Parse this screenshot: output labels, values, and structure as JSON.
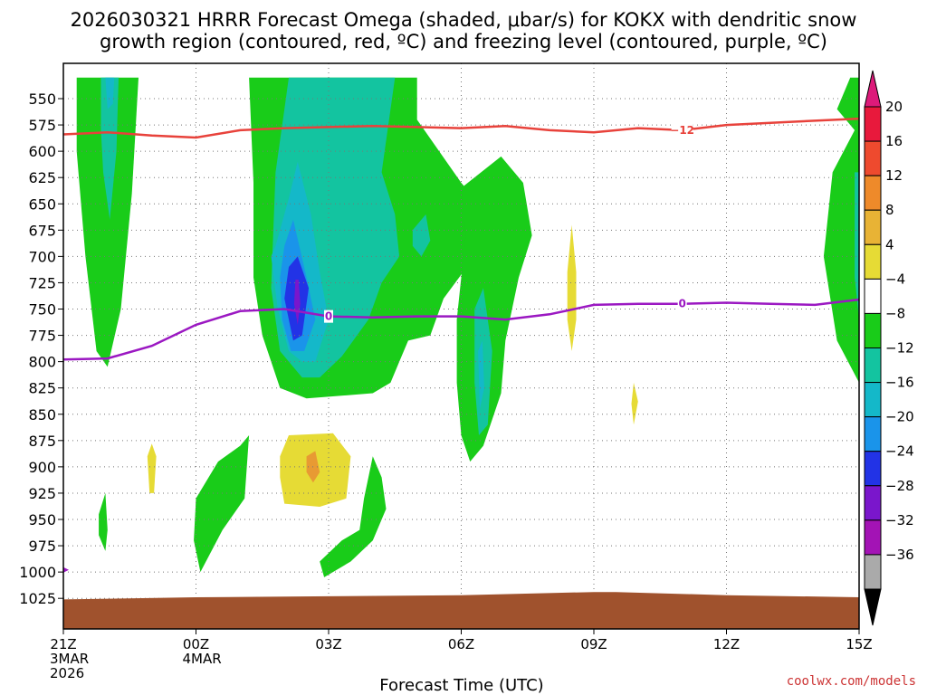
{
  "colors": {
    "green": "#19cc19",
    "teal": "#13c4a0",
    "cyan": "#14b8c9",
    "lightblue": "#1a94ea",
    "blue": "#2233e6",
    "purple": "#7a16cc",
    "yellow": "#e6db35",
    "orange": "#e89a33",
    "red_line": "#e8423b",
    "purple_line": "#9b18c2",
    "ground": "#a0522d",
    "credit": "#cc3333"
  },
  "chart_data": {
    "type": "time-height cross section",
    "title_line1": "2026030321 HRRR Forecast Omega (shaded, μbar/s) for KOKX with dendritic snow",
    "title_line2": "growth region (contoured, red, ºC) and freezing level (contoured, purple, ºC)",
    "xlabel": "Forecast Time (UTC)",
    "credit": "coolwx.com/models",
    "y_ticks": [
      550,
      575,
      600,
      625,
      650,
      675,
      700,
      725,
      750,
      775,
      800,
      825,
      850,
      875,
      900,
      925,
      950,
      975,
      1000,
      1025
    ],
    "x_ticks": [
      {
        "h": 0,
        "l1": "21Z",
        "l2": "3MAR",
        "l3": "2026"
      },
      {
        "h": 3,
        "l1": "00Z",
        "l2": "4MAR",
        "l3": ""
      },
      {
        "h": 6,
        "l1": "03Z",
        "l2": "",
        "l3": ""
      },
      {
        "h": 9,
        "l1": "06Z",
        "l2": "",
        "l3": ""
      },
      {
        "h": 12,
        "l1": "09Z",
        "l2": "",
        "l3": ""
      },
      {
        "h": 15,
        "l1": "12Z",
        "l2": "",
        "l3": ""
      },
      {
        "h": 18,
        "l1": "15Z",
        "l2": "",
        "l3": ""
      }
    ],
    "x_range_hours": [
      0,
      18
    ],
    "colorbar": {
      "labels": [
        "20",
        "16",
        "12",
        "8",
        "4",
        "−4",
        "−8",
        "−12",
        "−16",
        "−20",
        "−24",
        "−28",
        "−32",
        "−36"
      ],
      "segments": [
        "#e8193c",
        "#ee4a2e",
        "#ee8a2a",
        "#e8b335",
        "#e6db35",
        "#ffffff",
        "#19cc19",
        "#13c4a0",
        "#14b8c9",
        "#1a94ea",
        "#2233e6",
        "#7a16cc",
        "#a313b5",
        "#aaaaaa"
      ],
      "top_arrow": "#dd1a7a",
      "bottom_arrow": "#000000"
    },
    "dgz_line": {
      "value_label": "−12",
      "label_h": 14.0,
      "points": [
        [
          0,
          584
        ],
        [
          1,
          582
        ],
        [
          2,
          585
        ],
        [
          3,
          587
        ],
        [
          4,
          580
        ],
        [
          5,
          578
        ],
        [
          6,
          577
        ],
        [
          7,
          576
        ],
        [
          8,
          577
        ],
        [
          9,
          578
        ],
        [
          10,
          576
        ],
        [
          11,
          580
        ],
        [
          12,
          582
        ],
        [
          13,
          578
        ],
        [
          14,
          580
        ],
        [
          15,
          575
        ],
        [
          16,
          573
        ],
        [
          17,
          571
        ],
        [
          18,
          569
        ]
      ]
    },
    "freezing_line": {
      "value_label": "0",
      "label_points": [
        [
          6.0,
          758
        ],
        [
          14.0,
          745
        ]
      ],
      "points": [
        [
          0,
          798
        ],
        [
          1,
          797
        ],
        [
          2,
          785
        ],
        [
          3,
          765
        ],
        [
          4,
          752
        ],
        [
          5,
          750
        ],
        [
          6,
          757
        ],
        [
          7,
          758
        ],
        [
          8,
          757
        ],
        [
          9,
          757
        ],
        [
          10,
          760
        ],
        [
          11,
          755
        ],
        [
          12,
          746
        ],
        [
          13,
          745
        ],
        [
          14,
          745
        ],
        [
          15,
          744
        ],
        [
          16,
          745
        ],
        [
          17,
          746
        ],
        [
          18,
          741
        ]
      ]
    },
    "omega_regions": [
      {
        "name": "column-left",
        "color": "green",
        "points": [
          [
            0.3,
            530
          ],
          [
            1.7,
            530
          ],
          [
            1.55,
            640
          ],
          [
            1.3,
            750
          ],
          [
            1.0,
            805
          ],
          [
            0.75,
            790
          ],
          [
            0.5,
            700
          ],
          [
            0.3,
            600
          ]
        ]
      },
      {
        "name": "column-left-core",
        "color": "teal",
        "points": [
          [
            0.85,
            530
          ],
          [
            1.25,
            530
          ],
          [
            1.2,
            600
          ],
          [
            1.05,
            665
          ],
          [
            0.9,
            620
          ],
          [
            0.85,
            580
          ]
        ]
      },
      {
        "name": "column-left-inner",
        "color": "cyan",
        "points": [
          [
            0.95,
            530
          ],
          [
            1.15,
            530
          ],
          [
            1.12,
            555
          ],
          [
            1.0,
            560
          ]
        ]
      },
      {
        "name": "main-plume",
        "color": "green",
        "points": [
          [
            4.2,
            530
          ],
          [
            8.0,
            530
          ],
          [
            8.0,
            570
          ],
          [
            8.5,
            600
          ],
          [
            9.0,
            630
          ],
          [
            9.6,
            660
          ],
          [
            9.3,
            700
          ],
          [
            8.6,
            740
          ],
          [
            8.3,
            775
          ],
          [
            7.8,
            780
          ],
          [
            7.6,
            800
          ],
          [
            7.4,
            820
          ],
          [
            7.0,
            830
          ],
          [
            5.5,
            835
          ],
          [
            4.9,
            825
          ],
          [
            4.5,
            775
          ],
          [
            4.3,
            720
          ],
          [
            4.3,
            630
          ]
        ]
      },
      {
        "name": "main-plume-teal",
        "color": "teal",
        "points": [
          [
            5.1,
            530
          ],
          [
            7.5,
            530
          ],
          [
            7.2,
            620
          ],
          [
            7.5,
            660
          ],
          [
            7.6,
            700
          ],
          [
            7.2,
            725
          ],
          [
            6.9,
            760
          ],
          [
            6.3,
            795
          ],
          [
            5.8,
            815
          ],
          [
            5.4,
            815
          ],
          [
            4.9,
            790
          ],
          [
            4.7,
            730
          ],
          [
            4.8,
            620
          ],
          [
            5.0,
            560
          ]
        ]
      },
      {
        "name": "main-plume-cyan",
        "color": "cyan",
        "points": [
          [
            4.8,
            690
          ],
          [
            5.1,
            645
          ],
          [
            5.3,
            610
          ],
          [
            5.6,
            660
          ],
          [
            5.8,
            715
          ],
          [
            6.0,
            760
          ],
          [
            5.7,
            800
          ],
          [
            5.4,
            800
          ],
          [
            5.1,
            790
          ],
          [
            4.85,
            750
          ],
          [
            4.7,
            700
          ]
        ]
      },
      {
        "name": "main-plume-lightblue",
        "color": "lightblue",
        "points": [
          [
            5.0,
            690
          ],
          [
            5.2,
            665
          ],
          [
            5.5,
            720
          ],
          [
            5.7,
            760
          ],
          [
            5.45,
            790
          ],
          [
            5.15,
            790
          ],
          [
            4.95,
            760
          ],
          [
            4.9,
            720
          ]
        ]
      },
      {
        "name": "main-plume-blue",
        "color": "blue",
        "points": [
          [
            5.1,
            710
          ],
          [
            5.3,
            700
          ],
          [
            5.55,
            730
          ],
          [
            5.4,
            775
          ],
          [
            5.2,
            780
          ],
          [
            5.0,
            740
          ]
        ]
      },
      {
        "name": "main-plume-purple",
        "color": "purple",
        "points": [
          [
            5.25,
            722
          ],
          [
            5.32,
            722
          ],
          [
            5.36,
            745
          ],
          [
            5.3,
            765
          ],
          [
            5.22,
            745
          ]
        ]
      },
      {
        "name": "teal-blob",
        "color": "teal",
        "points": [
          [
            7.9,
            675
          ],
          [
            8.2,
            660
          ],
          [
            8.3,
            685
          ],
          [
            8.1,
            700
          ],
          [
            7.9,
            690
          ]
        ]
      },
      {
        "name": "right-column",
        "color": "green",
        "points": [
          [
            9.0,
            635
          ],
          [
            9.9,
            605
          ],
          [
            10.4,
            630
          ],
          [
            10.6,
            680
          ],
          [
            10.3,
            720
          ],
          [
            10.0,
            780
          ],
          [
            9.9,
            830
          ],
          [
            9.5,
            880
          ],
          [
            9.2,
            895
          ],
          [
            9.0,
            870
          ],
          [
            8.9,
            820
          ],
          [
            8.9,
            760
          ],
          [
            9.1,
            680
          ]
        ]
      },
      {
        "name": "right-column-teal",
        "color": "teal",
        "points": [
          [
            9.3,
            750
          ],
          [
            9.5,
            730
          ],
          [
            9.7,
            790
          ],
          [
            9.6,
            860
          ],
          [
            9.4,
            870
          ],
          [
            9.3,
            820
          ]
        ]
      },
      {
        "name": "right-column-cyan",
        "color": "cyan",
        "points": [
          [
            9.38,
            790
          ],
          [
            9.48,
            780
          ],
          [
            9.52,
            825
          ],
          [
            9.42,
            845
          ]
        ]
      },
      {
        "name": "far-right",
        "color": "green",
        "points": [
          [
            17.8,
            530
          ],
          [
            18.0,
            530
          ],
          [
            18.0,
            820
          ],
          [
            17.5,
            780
          ],
          [
            17.2,
            700
          ],
          [
            17.4,
            620
          ],
          [
            17.9,
            580
          ],
          [
            17.5,
            560
          ]
        ]
      },
      {
        "name": "far-right-teal",
        "color": "teal",
        "points": [
          [
            17.9,
            620
          ],
          [
            18.0,
            620
          ],
          [
            18.0,
            760
          ],
          [
            17.9,
            720
          ]
        ]
      },
      {
        "name": "low-blob-1",
        "color": "green",
        "points": [
          [
            0.8,
            945
          ],
          [
            0.95,
            925
          ],
          [
            1.0,
            960
          ],
          [
            0.95,
            980
          ],
          [
            0.8,
            965
          ]
        ]
      },
      {
        "name": "low-blob-2",
        "color": "green",
        "points": [
          [
            3.0,
            930
          ],
          [
            3.5,
            895
          ],
          [
            4.0,
            880
          ],
          [
            4.2,
            870
          ],
          [
            4.1,
            930
          ],
          [
            3.6,
            960
          ],
          [
            3.1,
            1000
          ],
          [
            2.95,
            970
          ]
        ]
      },
      {
        "name": "low-blob-3",
        "color": "green",
        "points": [
          [
            5.8,
            990
          ],
          [
            6.3,
            970
          ],
          [
            6.7,
            960
          ],
          [
            6.8,
            930
          ],
          [
            7.0,
            890
          ],
          [
            7.2,
            910
          ],
          [
            7.3,
            940
          ],
          [
            7.0,
            970
          ],
          [
            6.5,
            990
          ],
          [
            5.9,
            1005
          ]
        ]
      },
      {
        "name": "yellow-center",
        "color": "yellow",
        "points": [
          [
            4.9,
            890
          ],
          [
            5.1,
            870
          ],
          [
            6.1,
            868
          ],
          [
            6.5,
            890
          ],
          [
            6.4,
            930
          ],
          [
            5.8,
            938
          ],
          [
            5.0,
            935
          ],
          [
            4.9,
            910
          ]
        ]
      },
      {
        "name": "orange-center",
        "color": "orange",
        "points": [
          [
            5.5,
            890
          ],
          [
            5.7,
            885
          ],
          [
            5.8,
            905
          ],
          [
            5.65,
            915
          ],
          [
            5.5,
            905
          ]
        ]
      },
      {
        "name": "yellow-small-1",
        "color": "yellow",
        "points": [
          [
            1.9,
            890
          ],
          [
            2.0,
            878
          ],
          [
            2.1,
            890
          ],
          [
            2.05,
            925
          ],
          [
            1.95,
            925
          ]
        ]
      },
      {
        "name": "yellow-small-2",
        "color": "yellow",
        "points": [
          [
            12.85,
            840
          ],
          [
            12.9,
            820
          ],
          [
            13.0,
            838
          ],
          [
            12.9,
            860
          ]
        ]
      },
      {
        "name": "yellow-tall",
        "color": "yellow",
        "points": [
          [
            11.4,
            715
          ],
          [
            11.5,
            670
          ],
          [
            11.6,
            715
          ],
          [
            11.6,
            760
          ],
          [
            11.5,
            790
          ],
          [
            11.4,
            760
          ]
        ]
      }
    ]
  }
}
